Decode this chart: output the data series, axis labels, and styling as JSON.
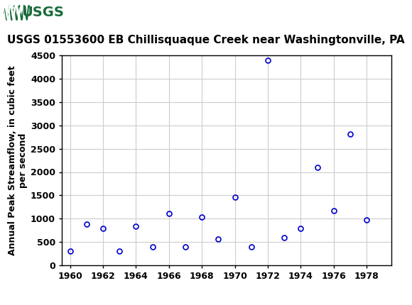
{
  "title": "USGS 01553600 EB Chillisquaque Creek near Washingtonville, PA",
  "ylabel_line1": "Annual Peak Streamflow, in cubic feet",
  "ylabel_line2": "per second",
  "years": [
    1960,
    1961,
    1962,
    1963,
    1964,
    1965,
    1966,
    1967,
    1968,
    1969,
    1970,
    1971,
    1972,
    1973,
    1974,
    1975,
    1976,
    1977,
    1978
  ],
  "flows": [
    300,
    880,
    790,
    300,
    840,
    390,
    1110,
    400,
    1030,
    560,
    1460,
    390,
    4390,
    600,
    790,
    2100,
    1170,
    2820,
    970
  ],
  "xlim": [
    1959.5,
    1979.5
  ],
  "ylim": [
    0,
    4500
  ],
  "xticks": [
    1960,
    1962,
    1964,
    1966,
    1968,
    1970,
    1972,
    1974,
    1976,
    1978
  ],
  "yticks": [
    0,
    500,
    1000,
    1500,
    2000,
    2500,
    3000,
    3500,
    4000,
    4500
  ],
  "marker_color": "#0000CC",
  "marker_size": 5,
  "grid_color": "#cccccc",
  "background_color": "#ffffff",
  "header_bg_color": "#1a6b3c",
  "header_logo_bg": "#ffffff",
  "title_fontsize": 11,
  "axis_label_fontsize": 9,
  "tick_fontsize": 9
}
